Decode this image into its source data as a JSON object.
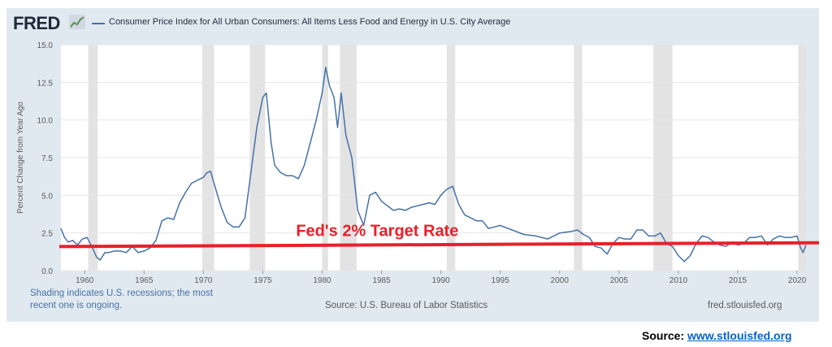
{
  "header": {
    "logo_text": "FRED",
    "logo_icon": "line-chart-icon",
    "legend_label": "Consumer Price Index for All Urban Consumers: All Items Less Food and Energy in U.S. City Average"
  },
  "footer": {
    "recession_note": "Shading indicates U.S. recessions; the most recent one is ongoing.",
    "source_note": "Source: U.S. Bureau of Labor Statistics",
    "site": "fred.stlouisfed.org"
  },
  "slide_source": {
    "label": "Source:",
    "link_text": "www.stlouisfed.org"
  },
  "colors": {
    "series": "#4572a7",
    "target_line": "#e8202a",
    "recession_shading": "#e3e3e3",
    "panel_background": "#e1e9f0"
  },
  "chart_data": {
    "type": "line",
    "title": "",
    "xlabel": "",
    "ylabel": "Percent Change from Year Ago",
    "xlim": [
      1958,
      2020.75
    ],
    "ylim": [
      0,
      15
    ],
    "yticks": [
      0.0,
      2.5,
      5.0,
      7.5,
      10.0,
      12.5,
      15.0
    ],
    "ytick_labels": [
      "0.0",
      "2.5",
      "5.0",
      "7.5",
      "10.0",
      "12.5",
      "15.0"
    ],
    "xticks": [
      1960,
      1965,
      1970,
      1975,
      1980,
      1985,
      1990,
      1995,
      2000,
      2005,
      2010,
      2015,
      2020
    ],
    "xtick_labels": [
      "1960",
      "1965",
      "1970",
      "1975",
      "1980",
      "1985",
      "1990",
      "1995",
      "2000",
      "2005",
      "2010",
      "2015",
      "2020"
    ],
    "grid": true,
    "legend_position": "top",
    "recessions": [
      [
        1960.3,
        1961.1
      ],
      [
        1969.9,
        1970.9
      ],
      [
        1973.9,
        1975.2
      ],
      [
        1980.0,
        1980.5
      ],
      [
        1981.5,
        1982.9
      ],
      [
        1990.5,
        1991.2
      ],
      [
        2001.2,
        2001.9
      ],
      [
        2007.9,
        2009.5
      ],
      [
        2020.1,
        2020.75
      ]
    ],
    "annotation": {
      "text": "Fed's 2% Target Rate",
      "line_start": [
        1958,
        1.6
      ],
      "line_end": [
        2020.75,
        1.85
      ]
    },
    "series": [
      {
        "name": "Consumer Price Index for All Urban Consumers: All Items Less Food and Energy in U.S. City Average",
        "x": [
          1958.0,
          1958.3,
          1958.6,
          1959.0,
          1959.4,
          1959.8,
          1960.2,
          1960.6,
          1961.0,
          1961.3,
          1961.7,
          1962.0,
          1962.5,
          1963.0,
          1963.5,
          1964.0,
          1964.5,
          1965.0,
          1965.5,
          1966.0,
          1966.5,
          1967.0,
          1967.5,
          1968.0,
          1968.5,
          1969.0,
          1969.5,
          1970.0,
          1970.3,
          1970.6,
          1971.0,
          1971.5,
          1972.0,
          1972.5,
          1973.0,
          1973.5,
          1974.0,
          1974.5,
          1975.0,
          1975.3,
          1975.7,
          1976.0,
          1976.5,
          1977.0,
          1977.5,
          1978.0,
          1978.5,
          1979.0,
          1979.5,
          1980.0,
          1980.3,
          1980.6,
          1981.0,
          1981.3,
          1981.6,
          1982.0,
          1982.5,
          1983.0,
          1983.5,
          1984.0,
          1984.5,
          1985.0,
          1985.5,
          1986.0,
          1986.5,
          1987.0,
          1987.5,
          1988.0,
          1988.5,
          1989.0,
          1989.5,
          1990.0,
          1990.5,
          1991.0,
          1991.5,
          1992.0,
          1992.5,
          1993.0,
          1993.5,
          1994.0,
          1994.5,
          1995.0,
          1996.0,
          1997.0,
          1998.0,
          1999.0,
          2000.0,
          2001.0,
          2001.5,
          2002.0,
          2002.5,
          2003.0,
          2003.5,
          2004.0,
          2004.5,
          2005.0,
          2005.5,
          2006.0,
          2006.5,
          2007.0,
          2007.5,
          2008.0,
          2008.5,
          2009.0,
          2009.5,
          2010.0,
          2010.5,
          2011.0,
          2011.5,
          2012.0,
          2012.5,
          2013.0,
          2013.5,
          2014.0,
          2014.5,
          2015.0,
          2015.5,
          2016.0,
          2016.5,
          2017.0,
          2017.5,
          2018.0,
          2018.5,
          2019.0,
          2019.5,
          2020.0,
          2020.3,
          2020.5,
          2020.75
        ],
        "values": [
          2.8,
          2.2,
          1.9,
          2.0,
          1.7,
          2.1,
          2.2,
          1.6,
          0.9,
          0.7,
          1.2,
          1.2,
          1.3,
          1.3,
          1.2,
          1.6,
          1.2,
          1.3,
          1.5,
          2.0,
          3.3,
          3.5,
          3.4,
          4.5,
          5.2,
          5.8,
          6.0,
          6.2,
          6.5,
          6.6,
          5.5,
          4.2,
          3.2,
          2.9,
          2.9,
          3.5,
          6.5,
          9.5,
          11.5,
          11.8,
          8.5,
          7.0,
          6.5,
          6.3,
          6.3,
          6.1,
          7.0,
          8.5,
          10.0,
          11.8,
          13.5,
          12.3,
          11.5,
          9.5,
          11.8,
          9.0,
          7.5,
          4.0,
          3.0,
          5.0,
          5.2,
          4.6,
          4.3,
          4.0,
          4.1,
          4.0,
          4.2,
          4.3,
          4.4,
          4.5,
          4.4,
          5.0,
          5.4,
          5.6,
          4.4,
          3.7,
          3.5,
          3.3,
          3.3,
          2.8,
          2.9,
          3.0,
          2.7,
          2.4,
          2.3,
          2.1,
          2.5,
          2.6,
          2.7,
          2.4,
          2.2,
          1.6,
          1.5,
          1.1,
          1.8,
          2.2,
          2.1,
          2.1,
          2.7,
          2.7,
          2.3,
          2.3,
          2.5,
          1.8,
          1.6,
          1.0,
          0.6,
          1.0,
          1.8,
          2.3,
          2.2,
          1.9,
          1.7,
          1.6,
          1.9,
          1.7,
          1.8,
          2.2,
          2.2,
          2.3,
          1.7,
          2.1,
          2.3,
          2.2,
          2.2,
          2.3,
          1.5,
          1.2,
          1.7
        ]
      }
    ]
  }
}
